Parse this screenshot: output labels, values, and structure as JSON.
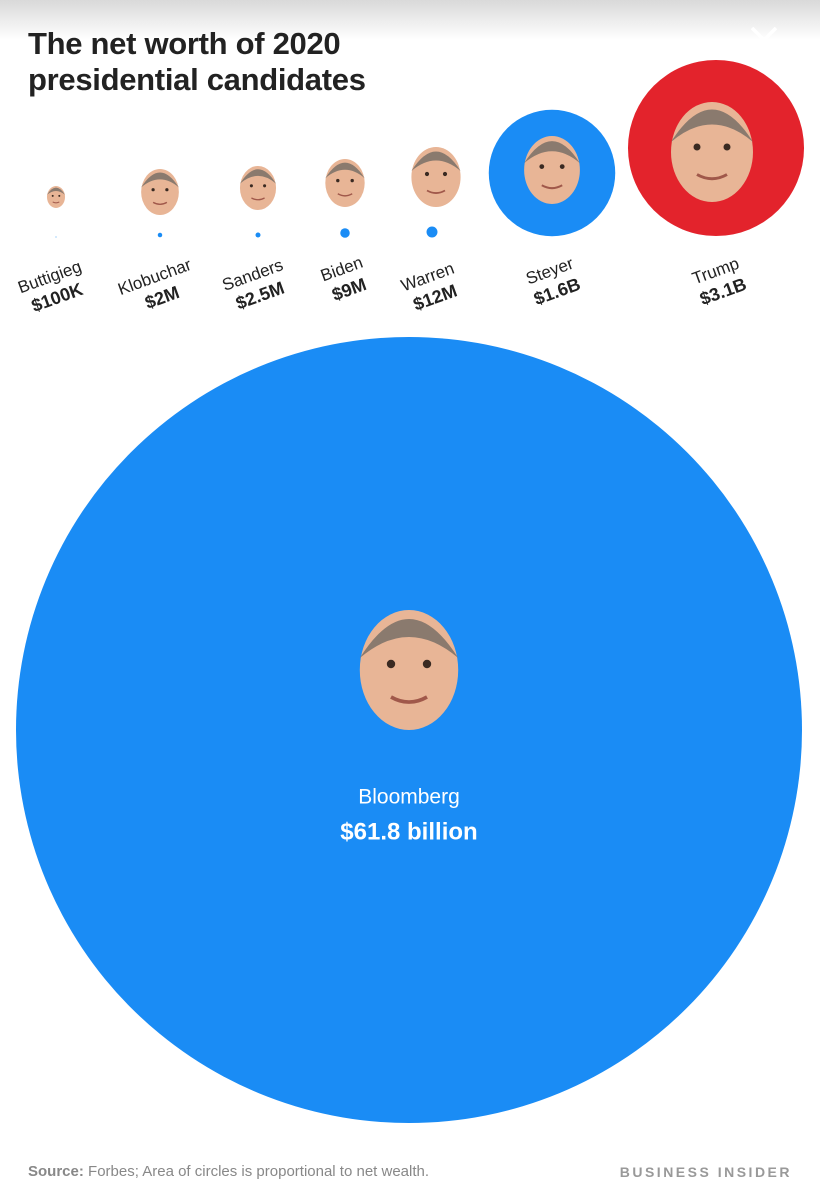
{
  "chart_data": {
    "type": "bubble",
    "title": "The net worth of 2020 presidential candidates",
    "categories": [
      "Buttigieg",
      "Klobuchar",
      "Sanders",
      "Biden",
      "Warren",
      "Steyer",
      "Trump",
      "Bloomberg"
    ],
    "values": [
      100000,
      2000000,
      2500000,
      9000000,
      12000000,
      1600000000,
      3100000000,
      61800000000
    ],
    "value_labels": [
      "$100K",
      "$2M",
      "$2.5M",
      "$9M",
      "$12M",
      "$1.6B",
      "$3.1B",
      "$61.8 billion"
    ],
    "colors": [
      "#1a8cf5",
      "#1a8cf5",
      "#1a8cf5",
      "#1a8cf5",
      "#1a8cf5",
      "#1a8cf5",
      "#e3232c",
      "#1a8cf5"
    ],
    "source_label": "Source:",
    "source": "Forbes; Area of circles is proportional to net wealth.",
    "brand": "BUSINESS INSIDER"
  }
}
